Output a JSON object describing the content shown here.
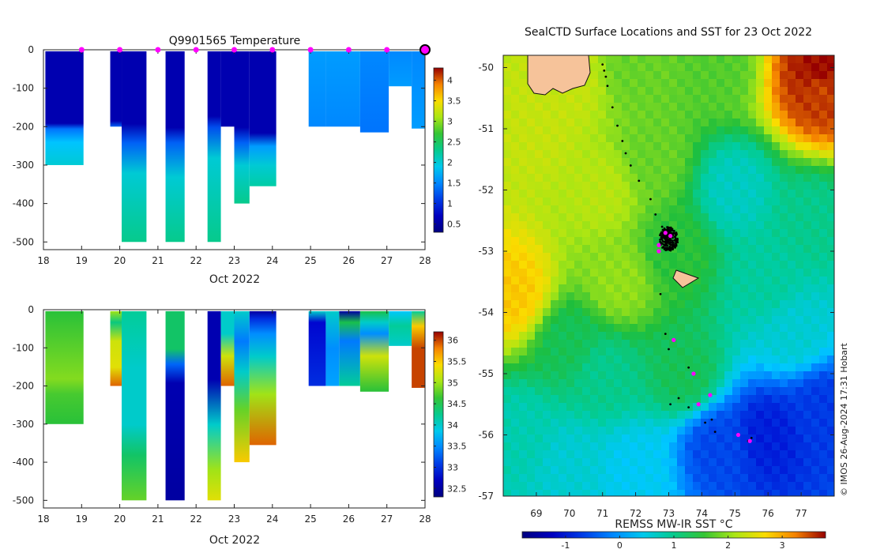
{
  "chart_data": [
    {
      "type": "heatmap",
      "title": "Q9901565  Temperature",
      "xlabel": "Oct 2022",
      "ylabel": "",
      "xlim": [
        18,
        28
      ],
      "ylim": [
        -520,
        0
      ],
      "xticks": [
        18,
        19,
        20,
        21,
        22,
        23,
        24,
        25,
        26,
        27,
        28
      ],
      "yticks": [
        0,
        -100,
        -200,
        -300,
        -400,
        -500
      ],
      "colorbar": {
        "ticks": [
          0.5,
          1,
          1.5,
          2,
          2.5,
          3,
          3.5,
          4
        ],
        "range": [
          0.3,
          4.3
        ]
      },
      "surface_markers_day": [
        19,
        20,
        21,
        22,
        23,
        24,
        25,
        26,
        27
      ],
      "last_marker_day": 28,
      "profiles": [
        {
          "x0": 18.05,
          "x1": 19.05,
          "maxdepth": 300,
          "stops": [
            [
              0,
              0.6
            ],
            [
              190,
              0.6
            ],
            [
              205,
              1.4
            ],
            [
              240,
              1.8
            ],
            [
              300,
              2.0
            ]
          ]
        },
        {
          "x0": 19.75,
          "x1": 20.05,
          "maxdepth": 200,
          "stops": [
            [
              0,
              0.6
            ],
            [
              185,
              0.6
            ],
            [
              200,
              1.3
            ]
          ]
        },
        {
          "x0": 20.05,
          "x1": 20.7,
          "maxdepth": 500,
          "stops": [
            [
              0,
              0.6
            ],
            [
              190,
              0.6
            ],
            [
              240,
              1.3
            ],
            [
              320,
              2.0
            ],
            [
              500,
              2.3
            ]
          ]
        },
        {
          "x0": 21.2,
          "x1": 21.7,
          "maxdepth": 500,
          "stops": [
            [
              0,
              0.6
            ],
            [
              200,
              0.6
            ],
            [
              240,
              1.3
            ],
            [
              330,
              2.0
            ],
            [
              500,
              2.3
            ]
          ]
        },
        {
          "x0": 22.3,
          "x1": 22.65,
          "maxdepth": 500,
          "stops": [
            [
              0,
              0.6
            ],
            [
              170,
              0.6
            ],
            [
              200,
              1.2
            ],
            [
              280,
              2.0
            ],
            [
              500,
              2.3
            ]
          ]
        },
        {
          "x0": 22.65,
          "x1": 23.0,
          "maxdepth": 200,
          "stops": [
            [
              0,
              0.6
            ],
            [
              200,
              0.6
            ]
          ]
        },
        {
          "x0": 23.0,
          "x1": 23.4,
          "maxdepth": 400,
          "stops": [
            [
              0,
              0.6
            ],
            [
              200,
              0.6
            ],
            [
              240,
              1.3
            ],
            [
              300,
              2.0
            ],
            [
              400,
              2.3
            ]
          ]
        },
        {
          "x0": 23.4,
          "x1": 24.1,
          "maxdepth": 355,
          "stops": [
            [
              0,
              0.6
            ],
            [
              215,
              0.6
            ],
            [
              250,
              1.6
            ],
            [
              300,
              2.0
            ],
            [
              355,
              2.2
            ]
          ]
        },
        {
          "x0": 24.95,
          "x1": 25.4,
          "maxdepth": 200,
          "stops": [
            [
              0,
              1.6
            ],
            [
              200,
              1.5
            ]
          ]
        },
        {
          "x0": 25.4,
          "x1": 26.3,
          "maxdepth": 200,
          "stops": [
            [
              0,
              1.6
            ],
            [
              200,
              1.5
            ]
          ]
        },
        {
          "x0": 26.3,
          "x1": 27.05,
          "maxdepth": 215,
          "stops": [
            [
              0,
              1.5
            ],
            [
              215,
              1.4
            ]
          ]
        },
        {
          "x0": 27.05,
          "x1": 27.65,
          "maxdepth": 95,
          "stops": [
            [
              0,
              1.5
            ],
            [
              95,
              1.6
            ]
          ]
        },
        {
          "x0": 27.65,
          "x1": 28.0,
          "maxdepth": 205,
          "stops": [
            [
              0,
              1.5
            ],
            [
              205,
              1.6
            ]
          ]
        }
      ]
    },
    {
      "type": "heatmap",
      "title": "",
      "xlabel": "Oct 2022",
      "ylabel": "",
      "xlim": [
        18,
        28
      ],
      "ylim": [
        -520,
        0
      ],
      "xticks": [
        18,
        19,
        20,
        21,
        22,
        23,
        24,
        25,
        26,
        27,
        28
      ],
      "yticks": [
        0,
        -100,
        -200,
        -300,
        -400,
        -500
      ],
      "colorbar": {
        "ticks": [
          32.5,
          33,
          33.5,
          34,
          34.5,
          35,
          35.5,
          36
        ],
        "range": [
          32.3,
          36.2
        ]
      },
      "profiles": [
        {
          "x0": 18.05,
          "x1": 19.05,
          "maxdepth": 300,
          "stops": [
            [
              0,
              34.6
            ],
            [
              180,
              34.9
            ],
            [
              220,
              34.7
            ],
            [
              300,
              34.6
            ]
          ]
        },
        {
          "x0": 19.75,
          "x1": 20.05,
          "maxdepth": 200,
          "stops": [
            [
              0,
              35.0
            ],
            [
              30,
              34.3
            ],
            [
              80,
              35.2
            ],
            [
              150,
              35.3
            ],
            [
              200,
              35.9
            ]
          ]
        },
        {
          "x0": 20.05,
          "x1": 20.7,
          "maxdepth": 500,
          "stops": [
            [
              0,
              34.2
            ],
            [
              150,
              34.0
            ],
            [
              300,
              34.0
            ],
            [
              380,
              34.4
            ],
            [
              500,
              34.8
            ]
          ]
        },
        {
          "x0": 21.2,
          "x1": 21.7,
          "maxdepth": 500,
          "stops": [
            [
              0,
              34.4
            ],
            [
              100,
              34.4
            ],
            [
              140,
              33.3
            ],
            [
              190,
              32.6
            ],
            [
              500,
              32.5
            ]
          ]
        },
        {
          "x0": 22.3,
          "x1": 22.65,
          "maxdepth": 500,
          "stops": [
            [
              0,
              32.6
            ],
            [
              180,
              32.6
            ],
            [
              300,
              34.0
            ],
            [
              420,
              35.0
            ],
            [
              500,
              35.3
            ]
          ]
        },
        {
          "x0": 22.65,
          "x1": 23.0,
          "maxdepth": 200,
          "stops": [
            [
              0,
              34.0
            ],
            [
              60,
              34.0
            ],
            [
              120,
              35.2
            ],
            [
              200,
              35.9
            ]
          ]
        },
        {
          "x0": 23.0,
          "x1": 23.4,
          "maxdepth": 400,
          "stops": [
            [
              0,
              34.0
            ],
            [
              80,
              33.4
            ],
            [
              160,
              34.0
            ],
            [
              260,
              34.8
            ],
            [
              400,
              35.5
            ]
          ]
        },
        {
          "x0": 23.4,
          "x1": 24.1,
          "maxdepth": 355,
          "stops": [
            [
              0,
              32.5
            ],
            [
              20,
              33.0
            ],
            [
              60,
              33.5
            ],
            [
              120,
              34.0
            ],
            [
              220,
              35.0
            ],
            [
              355,
              35.9
            ]
          ]
        },
        {
          "x0": 24.95,
          "x1": 25.4,
          "maxdepth": 200,
          "stops": [
            [
              0,
              34.0
            ],
            [
              30,
              32.8
            ],
            [
              200,
              33.0
            ]
          ]
        },
        {
          "x0": 25.4,
          "x1": 25.75,
          "maxdepth": 200,
          "stops": [
            [
              0,
              34.0
            ],
            [
              100,
              33.5
            ],
            [
              200,
              33.6
            ]
          ]
        },
        {
          "x0": 25.75,
          "x1": 26.3,
          "maxdepth": 200,
          "stops": [
            [
              0,
              32.5
            ],
            [
              30,
              34.5
            ],
            [
              80,
              33.4
            ],
            [
              200,
              34.2
            ]
          ]
        },
        {
          "x0": 26.3,
          "x1": 27.05,
          "maxdepth": 215,
          "stops": [
            [
              0,
              34.5
            ],
            [
              30,
              34.0
            ],
            [
              60,
              33.5
            ],
            [
              120,
              35.2
            ],
            [
              215,
              34.6
            ]
          ]
        },
        {
          "x0": 27.05,
          "x1": 27.65,
          "maxdepth": 95,
          "stops": [
            [
              0,
              33.8
            ],
            [
              40,
              34.2
            ],
            [
              95,
              34.0
            ]
          ]
        },
        {
          "x0": 27.65,
          "x1": 28.0,
          "maxdepth": 205,
          "stops": [
            [
              0,
              34.2
            ],
            [
              40,
              35.5
            ],
            [
              100,
              36.0
            ],
            [
              205,
              36.0
            ]
          ]
        }
      ]
    },
    {
      "type": "heatmap",
      "title": "SealCTD Surface Locations and SST for 23 Oct 2022",
      "xlabel": "REMSS MW-IR SST °C",
      "ylabel": "",
      "xlim": [
        68,
        78
      ],
      "ylim": [
        -57,
        -49.8
      ],
      "xticks": [
        69,
        70,
        71,
        72,
        73,
        74,
        75,
        76,
        77
      ],
      "yticks": [
        -50,
        -51,
        -52,
        -53,
        -54,
        -55,
        -56,
        -57
      ],
      "colorbar": {
        "ticks": [
          -1,
          0,
          1,
          2,
          3
        ],
        "range": [
          -1.8,
          3.8
        ]
      },
      "sst_field": [
        {
          "lon": 68.3,
          "lat": -53.7,
          "sst": 2.8
        },
        {
          "lon": 70,
          "lat": -50.2,
          "sst": 2.3
        },
        {
          "lon": 72,
          "lat": -50.0,
          "sst": 1.8
        },
        {
          "lon": 74.5,
          "lat": -50.0,
          "sst": 1.7
        },
        {
          "lon": 77.6,
          "lat": -50.1,
          "sst": 3.8
        },
        {
          "lon": 77.6,
          "lat": -50.3,
          "sst": 3.5
        },
        {
          "lon": 72.5,
          "lat": -51.5,
          "sst": 1.8
        },
        {
          "lon": 75.0,
          "lat": -52.0,
          "sst": 0.7
        },
        {
          "lon": 71.0,
          "lat": -52.0,
          "sst": 2.2
        },
        {
          "lon": 73.2,
          "lat": -53.0,
          "sst": 1.5
        },
        {
          "lon": 76.0,
          "lat": -53.5,
          "sst": 0.9
        },
        {
          "lon": 70.0,
          "lat": -54.5,
          "sst": 1.3
        },
        {
          "lon": 71.0,
          "lat": -55.0,
          "sst": 1.0
        },
        {
          "lon": 73.5,
          "lat": -55.0,
          "sst": 1.3
        },
        {
          "lon": 68.5,
          "lat": -56.0,
          "sst": 0.8
        },
        {
          "lon": 70.0,
          "lat": -56.5,
          "sst": 0.6
        },
        {
          "lon": 72.0,
          "lat": -56.6,
          "sst": 0.4
        },
        {
          "lon": 74.5,
          "lat": -56.2,
          "sst": -0.6
        },
        {
          "lon": 76.0,
          "lat": -56.0,
          "sst": -0.9
        },
        {
          "lon": 77.6,
          "lat": -55.6,
          "sst": -0.7
        },
        {
          "lon": 76.8,
          "lat": -54.3,
          "sst": 0.6
        },
        {
          "lon": 71.5,
          "lat": -53.5,
          "sst": 2.0
        },
        {
          "lon": 69.0,
          "lat": -51.0,
          "sst": 2.3
        },
        {
          "lon": 77.3,
          "lat": -52.5,
          "sst": 1.0
        }
      ],
      "track_points": [
        [
          70.9,
          -49.75
        ],
        [
          71.0,
          -49.95
        ],
        [
          71.05,
          -50.05
        ],
        [
          71.1,
          -50.15
        ],
        [
          71.15,
          -50.3
        ],
        [
          71.3,
          -50.65
        ],
        [
          71.45,
          -50.95
        ],
        [
          71.6,
          -51.2
        ],
        [
          71.7,
          -51.4
        ],
        [
          71.85,
          -51.6
        ],
        [
          72.1,
          -51.85
        ],
        [
          72.45,
          -52.15
        ],
        [
          72.6,
          -52.4
        ],
        [
          72.8,
          -52.6
        ],
        [
          72.9,
          -52.8
        ],
        [
          73.0,
          -52.7
        ],
        [
          73.1,
          -52.9
        ],
        [
          72.75,
          -53.7
        ],
        [
          72.9,
          -54.35
        ],
        [
          73.0,
          -54.6
        ],
        [
          73.6,
          -54.9
        ],
        [
          73.3,
          -55.4
        ],
        [
          73.6,
          -55.55
        ],
        [
          74.1,
          -55.8
        ],
        [
          74.3,
          -55.75
        ],
        [
          74.4,
          -55.95
        ],
        [
          73.05,
          -55.5
        ],
        [
          75.5,
          -56.05
        ],
        [
          75.4,
          -56.1
        ]
      ],
      "cluster_center": [
        73.0,
        -52.8
      ],
      "surface_markers": [
        [
          72.7,
          -52.9
        ],
        [
          72.7,
          -53.0
        ],
        [
          72.9,
          -52.7
        ],
        [
          73.05,
          -52.75
        ],
        [
          73.15,
          -54.45
        ],
        [
          73.75,
          -55.0
        ],
        [
          73.9,
          -55.5
        ],
        [
          74.25,
          -55.35
        ],
        [
          75.1,
          -56.0
        ],
        [
          75.45,
          -56.1
        ]
      ],
      "credit": "© IMOS 26-Aug-2024 17:31 Hobart"
    }
  ]
}
